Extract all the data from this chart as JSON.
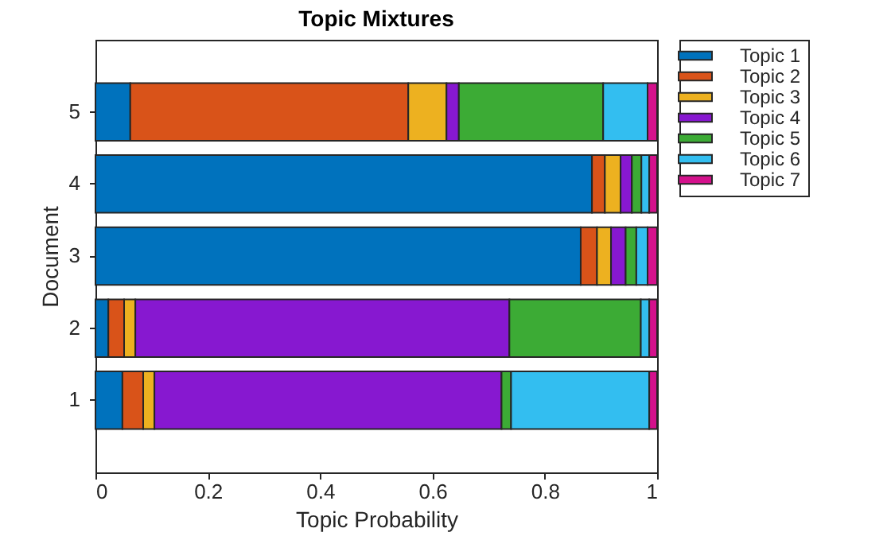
{
  "chart_data": {
    "type": "bar",
    "title": "Topic Mixtures",
    "xlabel": "Topic Probability",
    "ylabel": "Document",
    "orientation": "horizontal",
    "stacked": true,
    "categories": [
      "5",
      "4",
      "3",
      "2",
      "1"
    ],
    "series": [
      {
        "name": "Topic 1",
        "color": "#0072bd",
        "values": [
          0.062,
          0.884,
          0.864,
          0.023,
          0.048
        ]
      },
      {
        "name": "Topic 2",
        "color": "#d95319",
        "values": [
          0.495,
          0.023,
          0.029,
          0.028,
          0.037
        ]
      },
      {
        "name": "Topic 3",
        "color": "#edb120",
        "values": [
          0.068,
          0.028,
          0.025,
          0.02,
          0.02
        ]
      },
      {
        "name": "Topic 4",
        "color": "#8718d0",
        "values": [
          0.022,
          0.02,
          0.026,
          0.666,
          0.618
        ]
      },
      {
        "name": "Topic 5",
        "color": "#3cab35",
        "values": [
          0.257,
          0.017,
          0.019,
          0.234,
          0.017
        ]
      },
      {
        "name": "Topic 6",
        "color": "#33bef0",
        "values": [
          0.079,
          0.014,
          0.02,
          0.015,
          0.246
        ]
      },
      {
        "name": "Topic 7",
        "color": "#d4118c",
        "values": [
          0.017,
          0.014,
          0.017,
          0.014,
          0.014
        ]
      }
    ],
    "xlim": [
      0,
      1
    ],
    "xticks": [
      0,
      0.2,
      0.4,
      0.6,
      0.8,
      1
    ],
    "grid": false,
    "legend": "top right"
  }
}
